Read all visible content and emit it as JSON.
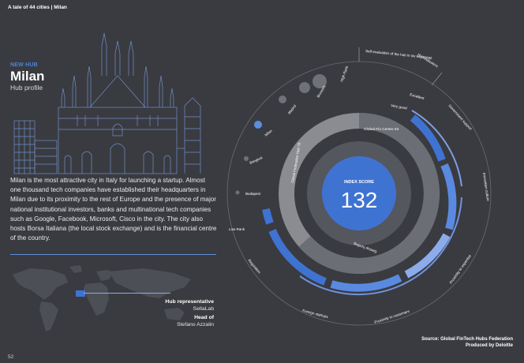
{
  "header": {
    "title": "A tale of 44 cities | Milan"
  },
  "hub": {
    "kicker": "NEW HUB",
    "city": "Milan",
    "subtitle": "Hub profile",
    "description": "Milan is the most attractive city in Italy for launching a startup. Almost one thousand tech companies have established their headquarters in Milan due to its proximity to the rest of Europe and the presence of major national institutional investors, banks and multinational tech companies such as Google, Facebook, Microsoft, Cisco in the city. The city also hosts Borsa Italiana (the local stock exchange) and is the financial centre of the country."
  },
  "people": {
    "rep_label": "Hub representative",
    "rep_value": "SellaLab",
    "head_label": "Head of",
    "head_value": "Stefano Azzalin"
  },
  "chart": {
    "index_label": "INDEX SCORE",
    "index_value": "132",
    "gfc_label": "Global Fin Centre 53",
    "gfh_label": "Global Federation Hub 79",
    "scale_high": "High Rank",
    "scale_low": "Low Rank",
    "peer_cities": [
      "Brussels",
      "Madrid",
      "Milan",
      "Bangkok",
      "Budapest"
    ],
    "self_eval_label": "Self evaluation of the hub in six key areas",
    "hub_indicators_label": "Hub indicators",
    "very_good_label": "Very good",
    "excellent_label": "Excellent",
    "areas": [
      "Government support",
      "Innovation culture",
      "Proximity to expertise",
      "Proximity to customers",
      "Foreign startups",
      "Regulation"
    ],
    "funding_label": "Startup funding",
    "colors": {
      "accent": "#3f73d2",
      "mid": "#5a8ae0",
      "light": "#8cabea"
    }
  },
  "footer": {
    "source_line1": "Source: Global FinTech Hubs Federation",
    "source_line2": "Produced by Deloitte",
    "page_number": "52"
  }
}
